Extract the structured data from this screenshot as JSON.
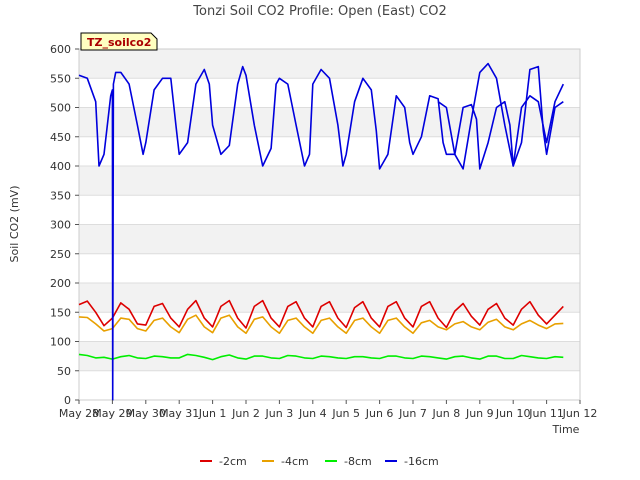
{
  "chart_data": {
    "type": "line",
    "title": "Tonzi Soil CO2 Profile: Open (East) CO2",
    "xlabel": "Time",
    "ylabel": "Soil CO2 (mV)",
    "site_label": "TZ_soilco2",
    "x_unit": "days since May 28",
    "xlim": [
      0,
      15
    ],
    "ylim": [
      0,
      600
    ],
    "x_ticks": [
      {
        "value": 0,
        "label": "May 28"
      },
      {
        "value": 1,
        "label": "May 29"
      },
      {
        "value": 2,
        "label": "May 30"
      },
      {
        "value": 3,
        "label": "May 31"
      },
      {
        "value": 4,
        "label": "Jun 1"
      },
      {
        "value": 5,
        "label": "Jun 2"
      },
      {
        "value": 6,
        "label": "Jun 3"
      },
      {
        "value": 7,
        "label": "Jun 4"
      },
      {
        "value": 8,
        "label": "Jun 5"
      },
      {
        "value": 9,
        "label": "Jun 6"
      },
      {
        "value": 10,
        "label": "Jun 7"
      },
      {
        "value": 11,
        "label": "Jun 8"
      },
      {
        "value": 12,
        "label": "Jun 9"
      },
      {
        "value": 13,
        "label": "Jun 10"
      },
      {
        "value": 14,
        "label": "Jun 11"
      },
      {
        "value": 15,
        "label": "Jun 12"
      }
    ],
    "y_ticks": [
      0,
      50,
      100,
      150,
      200,
      250,
      300,
      350,
      400,
      450,
      500,
      550,
      600
    ],
    "series": [
      {
        "name": "-2cm",
        "color": "#dd0000",
        "x": [
          0.0,
          0.25,
          0.5,
          0.75,
          1.0,
          1.25,
          1.5,
          1.75,
          2.0,
          2.25,
          2.5,
          2.75,
          3.0,
          3.25,
          3.5,
          3.75,
          4.0,
          4.25,
          4.5,
          4.75,
          5.0,
          5.25,
          5.5,
          5.75,
          6.0,
          6.25,
          6.5,
          6.75,
          7.0,
          7.25,
          7.5,
          7.75,
          8.0,
          8.25,
          8.5,
          8.75,
          9.0,
          9.25,
          9.5,
          9.75,
          10.0,
          10.25,
          10.5,
          10.75,
          11.0,
          11.25,
          11.5,
          11.75,
          12.0,
          12.25,
          12.5,
          12.75,
          13.0,
          13.25,
          13.5,
          13.75,
          14.0,
          14.25,
          14.5
        ],
        "y": [
          163,
          169,
          150,
          127,
          140,
          166,
          155,
          130,
          128,
          160,
          165,
          140,
          125,
          155,
          170,
          140,
          125,
          160,
          170,
          140,
          123,
          160,
          170,
          140,
          125,
          160,
          168,
          140,
          125,
          160,
          168,
          140,
          124,
          158,
          168,
          140,
          125,
          160,
          168,
          140,
          125,
          160,
          168,
          140,
          124,
          152,
          165,
          143,
          128,
          155,
          165,
          140,
          128,
          155,
          168,
          145,
          130,
          145,
          160
        ]
      },
      {
        "name": "-4cm",
        "color": "#e8a000",
        "x": [
          0.0,
          0.25,
          0.5,
          0.75,
          1.0,
          1.25,
          1.5,
          1.75,
          2.0,
          2.25,
          2.5,
          2.75,
          3.0,
          3.25,
          3.5,
          3.75,
          4.0,
          4.25,
          4.5,
          4.75,
          5.0,
          5.25,
          5.5,
          5.75,
          6.0,
          6.25,
          6.5,
          6.75,
          7.0,
          7.25,
          7.5,
          7.75,
          8.0,
          8.25,
          8.5,
          8.75,
          9.0,
          9.25,
          9.5,
          9.75,
          10.0,
          10.25,
          10.5,
          10.75,
          11.0,
          11.25,
          11.5,
          11.75,
          12.0,
          12.25,
          12.5,
          12.75,
          13.0,
          13.25,
          13.5,
          13.75,
          14.0,
          14.25,
          14.5
        ],
        "y": [
          142,
          141,
          130,
          118,
          122,
          140,
          138,
          122,
          118,
          136,
          140,
          125,
          115,
          138,
          145,
          125,
          115,
          140,
          145,
          125,
          114,
          138,
          142,
          125,
          114,
          136,
          140,
          125,
          114,
          136,
          140,
          125,
          114,
          136,
          140,
          125,
          114,
          136,
          140,
          125,
          114,
          132,
          136,
          125,
          120,
          130,
          134,
          125,
          120,
          133,
          138,
          125,
          120,
          130,
          136,
          128,
          122,
          130,
          131
        ]
      },
      {
        "name": "-8cm",
        "color": "#00ee00",
        "x": [
          0.0,
          0.25,
          0.5,
          0.75,
          1.0,
          1.25,
          1.5,
          1.75,
          2.0,
          2.25,
          2.5,
          2.75,
          3.0,
          3.25,
          3.5,
          3.75,
          4.0,
          4.25,
          4.5,
          4.75,
          5.0,
          5.25,
          5.5,
          5.75,
          6.0,
          6.25,
          6.5,
          6.75,
          7.0,
          7.25,
          7.5,
          7.75,
          8.0,
          8.25,
          8.5,
          8.75,
          9.0,
          9.25,
          9.5,
          9.75,
          10.0,
          10.25,
          10.5,
          10.75,
          11.0,
          11.25,
          11.5,
          11.75,
          12.0,
          12.25,
          12.5,
          12.75,
          13.0,
          13.25,
          13.5,
          13.75,
          14.0,
          14.25,
          14.5
        ],
        "y": [
          78,
          76,
          72,
          73,
          70,
          74,
          76,
          72,
          71,
          75,
          74,
          72,
          72,
          78,
          76,
          73,
          69,
          74,
          77,
          72,
          70,
          75,
          75,
          72,
          71,
          76,
          75,
          72,
          71,
          75,
          74,
          72,
          71,
          74,
          74,
          72,
          71,
          75,
          75,
          72,
          71,
          75,
          74,
          72,
          70,
          74,
          75,
          72,
          70,
          75,
          75,
          71,
          71,
          76,
          74,
          72,
          71,
          74,
          73
        ]
      },
      {
        "name": "-16cm",
        "color": "#0000dd",
        "x": [
          0.0,
          0.25,
          0.5,
          0.6,
          0.75,
          0.95,
          1.0,
          1.01,
          1.03,
          1.1,
          1.25,
          1.5,
          1.75,
          1.92,
          2.0,
          2.25,
          2.5,
          2.75,
          2.9,
          3.0,
          3.25,
          3.5,
          3.75,
          3.9,
          4.0,
          4.25,
          4.5,
          4.75,
          4.9,
          5.0,
          5.25,
          5.5,
          5.75,
          5.9,
          6.0,
          6.25,
          6.5,
          6.75,
          6.9,
          7.0,
          7.25,
          7.5,
          7.75,
          7.9,
          8.0,
          8.25,
          8.5,
          8.75,
          8.9,
          9.0,
          9.25,
          9.5,
          9.75,
          9.9,
          10.0,
          10.25,
          10.5,
          10.75,
          10.9,
          11.0,
          11.25,
          11.5,
          11.75,
          11.9,
          12.0,
          12.25,
          12.5,
          12.75,
          12.9,
          13.0,
          13.25,
          13.5,
          13.75,
          13.9,
          14.0,
          14.25,
          14.5
        ],
        "y": [
          555,
          550,
          510,
          400,
          420,
          520,
          530,
          0,
          540,
          560,
          560,
          540,
          470,
          420,
          440,
          530,
          550,
          550,
          470,
          420,
          440,
          540,
          565,
          540,
          470,
          420,
          435,
          540,
          570,
          555,
          470,
          400,
          430,
          540,
          550,
          540,
          470,
          400,
          420,
          540,
          565,
          550,
          470,
          400,
          420,
          510,
          550,
          530,
          460,
          395,
          420,
          520,
          500,
          440,
          420,
          450,
          520,
          515,
          440,
          420,
          420,
          500,
          505,
          480,
          395,
          440,
          500,
          510,
          470,
          400,
          440,
          565,
          570,
          460,
          420,
          500,
          510
        ]
      },
      {
        "name": "-16cm (tail)",
        "color": "#0000dd",
        "hidden_legend": true,
        "x": [
          10.75,
          11.0,
          11.25,
          11.5,
          11.75,
          12.0,
          12.25,
          12.5,
          12.75,
          13.0,
          13.25,
          13.5,
          13.75,
          14.0,
          14.25,
          14.5
        ],
        "y": [
          510,
          500,
          420,
          395,
          480,
          560,
          575,
          550,
          470,
          400,
          500,
          520,
          510,
          440,
          510,
          540
        ]
      }
    ]
  }
}
